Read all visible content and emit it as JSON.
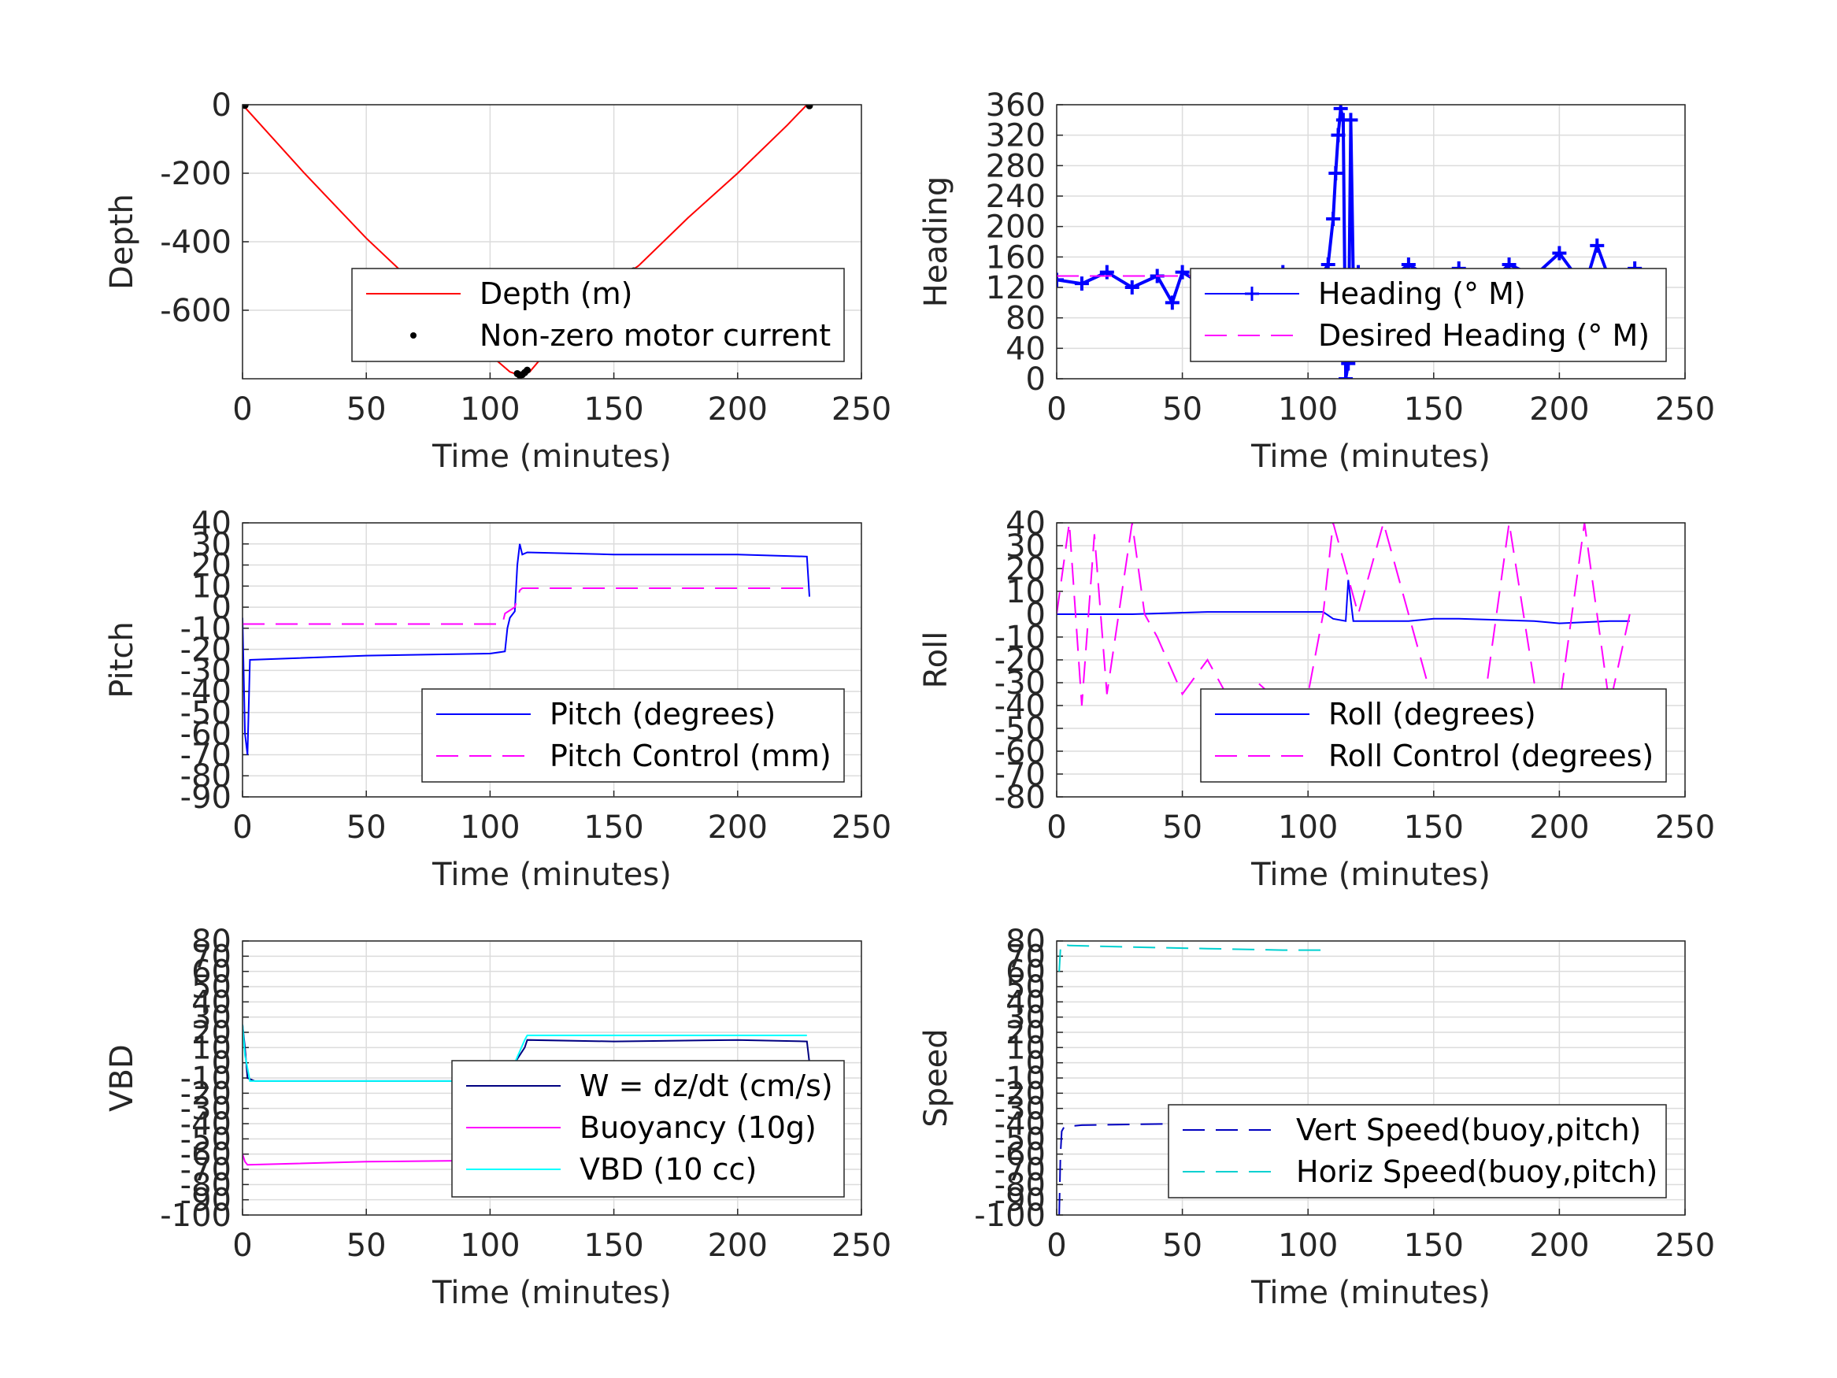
{
  "chart_data": [
    {
      "id": "depth",
      "type": "line",
      "xlabel": "Time (minutes)",
      "ylabel": "Depth",
      "xlim": [
        0,
        250
      ],
      "ylim": [
        -800,
        0
      ],
      "xticks": [
        "0",
        "50",
        "100",
        "150",
        "200",
        "250"
      ],
      "yticks": [
        "0",
        "-200",
        "-400",
        "-600"
      ],
      "grid": true,
      "legend": "lower-right",
      "series": [
        {
          "name": "Depth (m)",
          "style": "solid",
          "color": "#ff0000",
          "x": [
            0,
            25,
            50,
            75,
            100,
            108,
            112,
            116,
            130,
            150,
            160,
            180,
            200,
            220,
            228
          ],
          "y": [
            0,
            -200,
            -390,
            -560,
            -730,
            -780,
            -790,
            -780,
            -660,
            -520,
            -470,
            -330,
            -200,
            -60,
            0
          ]
        },
        {
          "name": "Non-zero motor current",
          "style": "points",
          "color": "#000000",
          "x": [
            1,
            111,
            112,
            113,
            114,
            115,
            158,
            229
          ],
          "y": [
            -2,
            -785,
            -790,
            -788,
            -782,
            -775,
            -485,
            -3
          ]
        }
      ]
    },
    {
      "id": "heading",
      "type": "line",
      "xlabel": "Time (minutes)",
      "ylabel": "Heading",
      "xlim": [
        0,
        250
      ],
      "ylim": [
        0,
        360
      ],
      "xticks": [
        "0",
        "50",
        "100",
        "150",
        "200",
        "250"
      ],
      "yticks": [
        "0",
        "40",
        "80",
        "120",
        "160",
        "200",
        "240",
        "280",
        "320",
        "360"
      ],
      "grid": true,
      "legend": "lower-right",
      "series": [
        {
          "name": "Heading (° M)",
          "style": "plus",
          "color": "#0000ff",
          "x": [
            0,
            10,
            20,
            30,
            40,
            46,
            50,
            60,
            70,
            80,
            90,
            100,
            105,
            108,
            110,
            111,
            112,
            113,
            114,
            115,
            116,
            117,
            118,
            120,
            130,
            140,
            150,
            160,
            170,
            180,
            190,
            200,
            210,
            215,
            220,
            230
          ],
          "y": [
            130,
            125,
            140,
            120,
            135,
            100,
            140,
            120,
            135,
            115,
            140,
            120,
            135,
            150,
            210,
            270,
            320,
            355,
            340,
            0,
            20,
            340,
            130,
            140,
            125,
            150,
            130,
            145,
            120,
            150,
            135,
            165,
            120,
            175,
            130,
            145
          ]
        },
        {
          "name": "Desired Heading (° M)",
          "style": "dashed",
          "color": "#ff00ff",
          "x": [
            0,
            230
          ],
          "y": [
            135,
            135
          ]
        }
      ]
    },
    {
      "id": "pitch",
      "type": "line",
      "xlabel": "Time (minutes)",
      "ylabel": "Pitch",
      "xlim": [
        0,
        250
      ],
      "ylim": [
        -90,
        40
      ],
      "xticks": [
        "0",
        "50",
        "100",
        "150",
        "200",
        "250"
      ],
      "yticks": [
        "-90",
        "-80",
        "-70",
        "-60",
        "-50",
        "-40",
        "-30",
        "-20",
        "-10",
        "0",
        "10",
        "20",
        "30",
        "40"
      ],
      "grid": true,
      "legend": "lower-right",
      "series": [
        {
          "name": "Pitch (degrees)",
          "style": "solid",
          "color": "#0000ff",
          "x": [
            0,
            1,
            2,
            3,
            50,
            100,
            106,
            107,
            108,
            110,
            111,
            112,
            113,
            115,
            150,
            200,
            228,
            229
          ],
          "y": [
            -5,
            -60,
            -70,
            -25,
            -23,
            -22,
            -21,
            -10,
            -5,
            -2,
            20,
            30,
            25,
            26,
            25,
            25,
            24,
            5
          ]
        },
        {
          "name": "Pitch Control (mm)",
          "style": "dashed",
          "color": "#ff00ff",
          "x": [
            0,
            105,
            106,
            110,
            112,
            113,
            229
          ],
          "y": [
            -8,
            -8,
            -3,
            0,
            8,
            9,
            9
          ]
        }
      ]
    },
    {
      "id": "roll",
      "type": "line",
      "xlabel": "Time (minutes)",
      "ylabel": "Roll",
      "xlim": [
        0,
        250
      ],
      "ylim": [
        -80,
        40
      ],
      "xticks": [
        "0",
        "50",
        "100",
        "150",
        "200",
        "250"
      ],
      "yticks": [
        "-80",
        "-70",
        "-60",
        "-50",
        "-40",
        "-30",
        "-20",
        "-10",
        "0",
        "10",
        "20",
        "30",
        "40"
      ],
      "grid": true,
      "legend": "lower-right",
      "series": [
        {
          "name": "Roll (degrees)",
          "style": "solid",
          "color": "#0000ff",
          "x": [
            0,
            30,
            60,
            90,
            106,
            110,
            115,
            116,
            118,
            120,
            140,
            150,
            160,
            190,
            200,
            220,
            228
          ],
          "y": [
            0,
            0,
            1,
            1,
            1,
            -2,
            -3,
            15,
            -3,
            -3,
            -3,
            -2,
            -2,
            -3,
            -4,
            -3,
            -3
          ]
        },
        {
          "name": "Roll Control (degrees)",
          "style": "dashed",
          "color": "#ff00ff",
          "x": [
            0,
            5,
            10,
            15,
            20,
            30,
            35,
            40,
            50,
            60,
            70,
            80,
            90,
            100,
            106,
            110,
            120,
            130,
            140,
            150,
            160,
            170,
            180,
            190,
            200,
            210,
            220,
            228
          ],
          "y": [
            0,
            40,
            -40,
            35,
            -35,
            40,
            0,
            -10,
            -35,
            -20,
            -40,
            -30,
            -40,
            -35,
            0,
            40,
            0,
            40,
            0,
            -40,
            -35,
            -40,
            40,
            -30,
            -40,
            40,
            -40,
            0
          ]
        }
      ]
    },
    {
      "id": "vbd",
      "type": "line",
      "xlabel": "Time (minutes)",
      "ylabel": "VBD",
      "xlim": [
        0,
        250
      ],
      "ylim": [
        -100,
        80
      ],
      "xticks": [
        "0",
        "50",
        "100",
        "150",
        "200",
        "250"
      ],
      "yticks": [
        "-100",
        "-90",
        "-80",
        "-70",
        "-60",
        "-50",
        "-40",
        "-30",
        "-20",
        "-10",
        "0",
        "10",
        "20",
        "30",
        "40",
        "50",
        "60",
        "70",
        "80"
      ],
      "grid": true,
      "legend": "lower-right",
      "series": [
        {
          "name": "W = dz/dt (cm/s)",
          "style": "solid",
          "color": "#000080",
          "x": [
            0,
            1,
            2,
            5,
            50,
            100,
            106,
            108,
            110,
            112,
            114,
            115,
            150,
            200,
            228,
            229
          ],
          "y": [
            25,
            10,
            -10,
            -12,
            -12,
            -12,
            -10,
            -5,
            0,
            5,
            10,
            15,
            14,
            15,
            14,
            0
          ]
        },
        {
          "name": "Buoyancy (10g)",
          "style": "solid",
          "color": "#ff00ff",
          "x": [
            0,
            1,
            2,
            50,
            106
          ],
          "y": [
            -60,
            -65,
            -67,
            -65,
            -64
          ]
        },
        {
          "name": "VBD (10 cc)",
          "style": "solid",
          "color": "#00ffff",
          "x": [
            0,
            1,
            3,
            50,
            106,
            110,
            114,
            115,
            228
          ],
          "y": [
            25,
            5,
            -12,
            -12,
            -12,
            0,
            15,
            18,
            18
          ]
        }
      ]
    },
    {
      "id": "speed",
      "type": "line",
      "xlabel": "Time (minutes)",
      "ylabel": "Speed",
      "xlim": [
        0,
        250
      ],
      "ylim": [
        -100,
        80
      ],
      "xticks": [
        "0",
        "50",
        "100",
        "150",
        "200",
        "250"
      ],
      "yticks": [
        "-100",
        "-90",
        "-80",
        "-70",
        "-60",
        "-50",
        "-40",
        "-30",
        "-20",
        "-10",
        "0",
        "10",
        "20",
        "30",
        "40",
        "50",
        "60",
        "70",
        "80"
      ],
      "grid": true,
      "legend": "lower-right",
      "series": [
        {
          "name": "Vert Speed(buoy,pitch)",
          "style": "dashed",
          "color": "#0000c0",
          "x": [
            1,
            1.5,
            2,
            3,
            10,
            50,
            80,
            106
          ],
          "y": [
            -100,
            -60,
            -45,
            -42,
            -41,
            -40,
            -38,
            -37
          ]
        },
        {
          "name": "Horiz Speed(buoy,pitch)",
          "style": "dashed",
          "color": "#00d0d0",
          "x": [
            1,
            1.5,
            2,
            5,
            30,
            60,
            90,
            106
          ],
          "y": [
            60,
            75,
            78,
            77,
            76,
            75,
            74,
            74
          ]
        }
      ]
    }
  ]
}
